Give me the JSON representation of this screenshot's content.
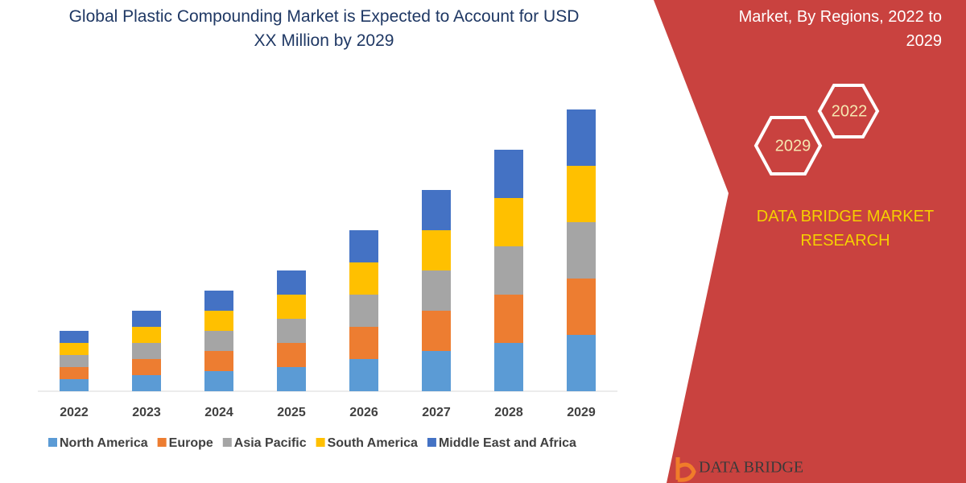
{
  "chart_data": {
    "type": "stacked-bar",
    "title": "Global Plastic Compounding Market is Expected to Account for USD XX Million by 2029",
    "categories": [
      "2022",
      "2023",
      "2024",
      "2025",
      "2026",
      "2027",
      "2028",
      "2029"
    ],
    "series": [
      {
        "name": "North America",
        "color": "#5b9bd5",
        "values": [
          15,
          20,
          25,
          30,
          40,
          50,
          60,
          70
        ]
      },
      {
        "name": "Europe",
        "color": "#ed7d31",
        "values": [
          15,
          20,
          25,
          30,
          40,
          50,
          60,
          70
        ]
      },
      {
        "name": "Asia Pacific",
        "color": "#a5a5a5",
        "values": [
          15,
          20,
          25,
          30,
          40,
          50,
          60,
          70
        ]
      },
      {
        "name": "South America",
        "color": "#ffc000",
        "values": [
          15,
          20,
          25,
          30,
          40,
          50,
          60,
          70
        ]
      },
      {
        "name": "Middle East and Africa",
        "color": "#4472c4",
        "values": [
          15,
          20,
          25,
          30,
          40,
          50,
          60,
          70
        ]
      }
    ],
    "ylim": [
      0,
      350
    ],
    "legend": "bottom"
  },
  "panel": {
    "heading": "Market, By Regions, 2022 to 2029",
    "hex_years": [
      "2022",
      "2029"
    ],
    "brand": "DATA BRIDGE MARKET RESEARCH",
    "logo": "DATA BRIDGE"
  }
}
